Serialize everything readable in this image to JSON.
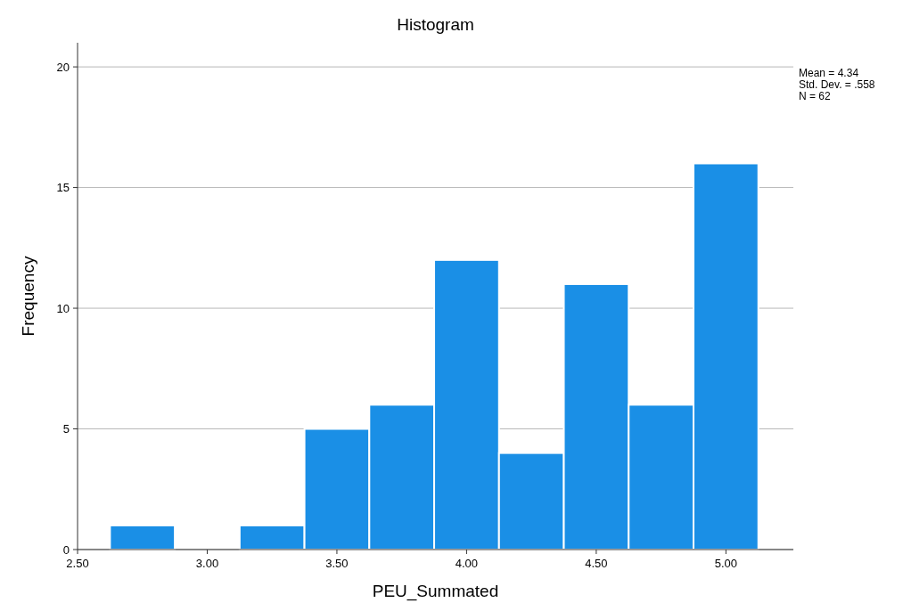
{
  "chart_data": {
    "type": "histogram",
    "title": "Histogram",
    "xlabel": "PEU_Summated",
    "ylabel": "Frequency",
    "bins": [
      2.625,
      2.875,
      3.125,
      3.375,
      3.625,
      3.875,
      4.125,
      4.375,
      4.625,
      4.875,
      5.125
    ],
    "values": [
      1,
      0,
      1,
      5,
      6,
      12,
      4,
      11,
      6,
      16
    ],
    "color": "#1a8fe6",
    "xlim": [
      2.5,
      5.26
    ],
    "xticks": [
      {
        "value": 2.5,
        "label": "2.50"
      },
      {
        "value": 3,
        "label": "3.00"
      },
      {
        "value": 3.5,
        "label": "3.50"
      },
      {
        "value": 4,
        "label": "4.00"
      },
      {
        "value": 4.5,
        "label": "4.50"
      },
      {
        "value": 5,
        "label": "5.00"
      }
    ],
    "ylim": [
      0,
      21
    ],
    "yticks": [
      0,
      5,
      10,
      15,
      20
    ],
    "grid": "y",
    "annotations": [
      "Mean = 4.34",
      "Std. Dev. = .558",
      "N = 62"
    ]
  }
}
